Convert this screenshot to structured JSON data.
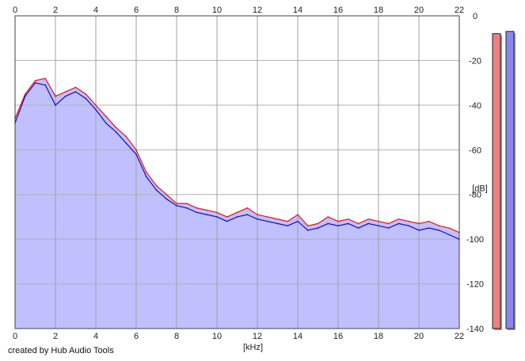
{
  "credit": "created by Hub Audio Tools",
  "chart_data": {
    "type": "area",
    "xlabel": "[kHz]",
    "ylabel": "[dB]",
    "xlim": [
      0,
      22
    ],
    "ylim": [
      -140,
      0
    ],
    "x_ticks": [
      0,
      2,
      4,
      6,
      8,
      10,
      12,
      14,
      16,
      18,
      20,
      22
    ],
    "y_ticks": [
      0,
      -20,
      -40,
      -60,
      -80,
      -100,
      -120,
      -140
    ],
    "grid": true,
    "x": [
      0,
      0.5,
      1,
      1.5,
      2,
      2.5,
      3,
      3.5,
      4,
      4.5,
      5,
      5.5,
      6,
      6.5,
      7,
      7.5,
      8,
      8.5,
      9,
      9.5,
      10,
      10.5,
      11,
      11.5,
      12,
      12.5,
      13,
      13.5,
      14,
      14.5,
      15,
      15.5,
      16,
      16.5,
      17,
      17.5,
      18,
      18.5,
      19,
      19.5,
      20,
      20.5,
      21,
      21.5,
      22
    ],
    "series": [
      {
        "color": "#ee1111",
        "values": [
          -46,
          -35,
          -29,
          -28,
          -36,
          -34,
          -32,
          -35,
          -40,
          -45,
          -50,
          -54,
          -60,
          -70,
          -76,
          -80,
          -84,
          -84,
          -86,
          -87,
          -88,
          -90,
          -88,
          -86,
          -89,
          -90,
          -91,
          -92,
          -89,
          -94,
          -93,
          -90,
          -92,
          -91,
          -93,
          -91,
          -92,
          -93,
          -91,
          -92,
          -93,
          -92,
          -94,
          -95,
          -97
        ]
      },
      {
        "color": "#1111bb",
        "values": [
          -48,
          -36,
          -30,
          -31,
          -40,
          -36,
          -34,
          -37,
          -42,
          -48,
          -52,
          -57,
          -62,
          -72,
          -78,
          -82,
          -85,
          -86,
          -88,
          -89,
          -90,
          -92,
          -90,
          -89,
          -91,
          -92,
          -93,
          -94,
          -92,
          -96,
          -95,
          -93,
          -94,
          -93,
          -95,
          -93,
          -94,
          -95,
          -93,
          -94,
          -96,
          -95,
          -96,
          -98,
          -100
        ]
      }
    ],
    "fill_color": "#c0c0ff",
    "level_meters": [
      {
        "channel": "left",
        "color": "#f08080",
        "level_db": -8
      },
      {
        "channel": "right",
        "color": "#8888f0",
        "level_db": -7
      }
    ]
  }
}
